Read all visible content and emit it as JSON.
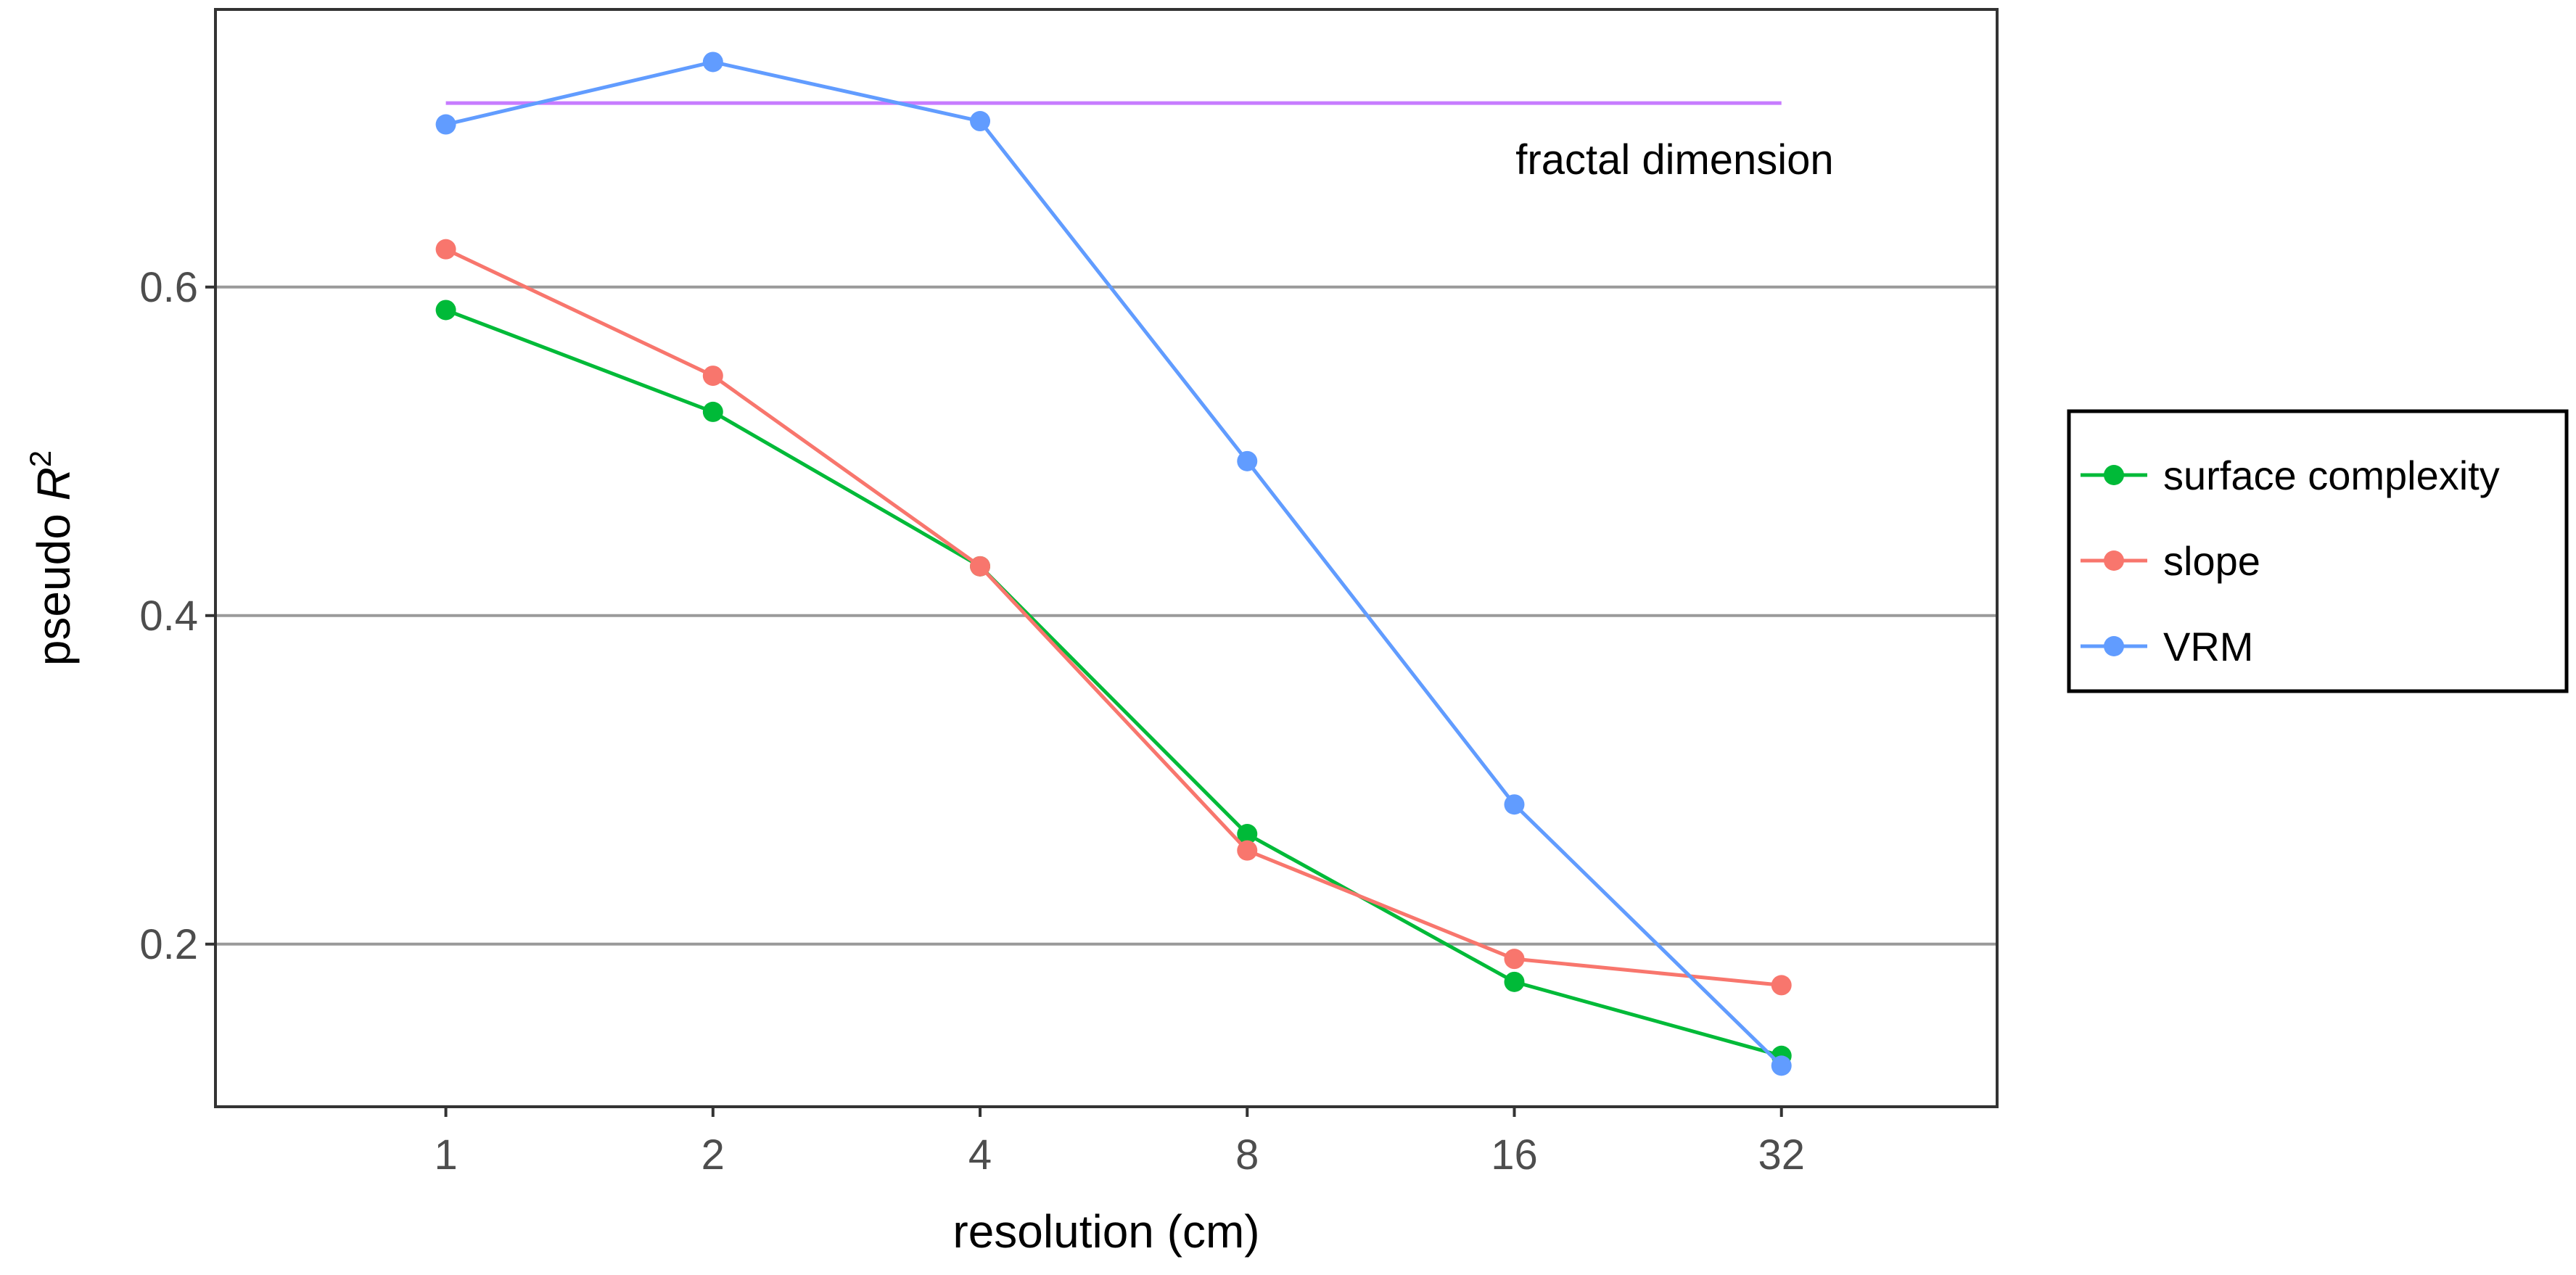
{
  "chart_data": {
    "type": "line",
    "title": "",
    "xlabel": "resolution (cm)",
    "ylabel": "pseudo",
    "ylabel_italic": "R",
    "ylabel_sup": "2",
    "x": [
      1,
      2,
      4,
      8,
      16,
      32
    ],
    "x_tick_labels": [
      "1",
      "2",
      "4",
      "8",
      "16",
      "32"
    ],
    "x_scale": "log2",
    "xlim": [
      0.55,
      56
    ],
    "ylim": [
      0.101,
      0.769
    ],
    "y_ticks": [
      0.2,
      0.4,
      0.6
    ],
    "y_tick_labels": [
      "0.2",
      "0.4",
      "0.6"
    ],
    "grid": "horizontal-major",
    "legend_position": "right",
    "series": [
      {
        "name": "surface complexity",
        "color": "#00BA38",
        "values": [
          0.586,
          0.524,
          0.43,
          0.267,
          0.177,
          0.132
        ]
      },
      {
        "name": "slope",
        "color": "#F8766D",
        "values": [
          0.623,
          0.546,
          0.43,
          0.257,
          0.191,
          0.175
        ]
      },
      {
        "name": "VRM",
        "color": "#619CFF",
        "values": [
          0.699,
          0.737,
          0.701,
          0.494,
          0.285,
          0.126
        ]
      }
    ],
    "reference_line": {
      "label": "fractal dimension",
      "color": "#C77CFF",
      "y": 0.712,
      "x_range": [
        1,
        32
      ]
    }
  }
}
